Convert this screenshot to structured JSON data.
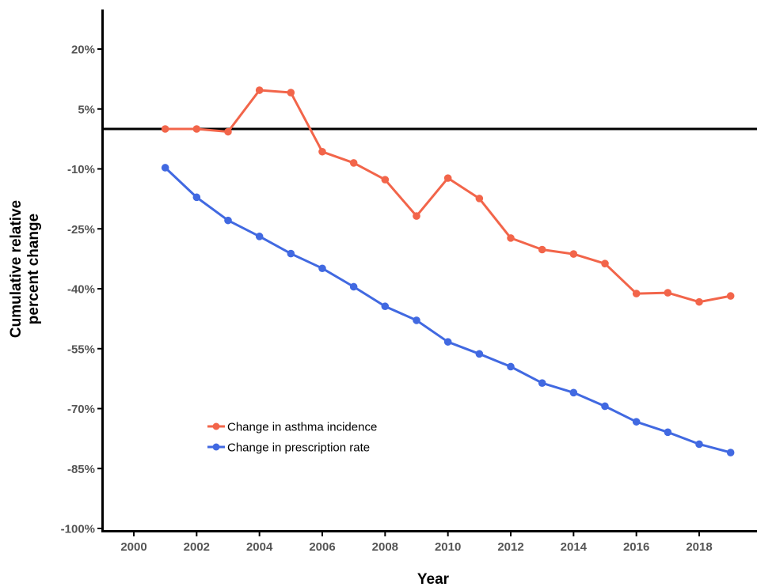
{
  "chart_data": {
    "type": "line",
    "title": "",
    "xlabel": "Year",
    "ylabel_lines": [
      "Cumulative relative",
      "percent change"
    ],
    "xlim": [
      1999.3,
      2020.8
    ],
    "ylim": [
      -100,
      30
    ],
    "x_ticks": [
      2000,
      2002,
      2004,
      2006,
      2008,
      2010,
      2012,
      2014,
      2016,
      2018
    ],
    "x_tick_labels": [
      "2000",
      "2002",
      "2004",
      "2006",
      "2008",
      "2010",
      "2012",
      "2014",
      "2016",
      "2018"
    ],
    "y_ticks": [
      20,
      5,
      -10,
      -25,
      -40,
      -55,
      -70,
      -85,
      -100
    ],
    "y_tick_labels": [
      "20%",
      "5%",
      "-10%",
      "-25%",
      "-40%",
      "-55%",
      "-70%",
      "-85%",
      "-100%"
    ],
    "reference_line_y": 0,
    "grid": false,
    "legend_position": "bottom-left",
    "x": [
      2001,
      2002,
      2003,
      2004,
      2005,
      2006,
      2007,
      2008,
      2009,
      2010,
      2011,
      2012,
      2013,
      2014,
      2015,
      2016,
      2017,
      2018,
      2019
    ],
    "series": [
      {
        "name": "Change in asthma incidence",
        "color": "#f2654a",
        "values": [
          0,
          0,
          -0.7,
          9.7,
          9.1,
          -5.7,
          -8.5,
          -12.7,
          -21.8,
          -12.3,
          -17.4,
          -27.3,
          -30.2,
          -31.3,
          -33.7,
          -41.2,
          -41.0,
          -43.3,
          -41.8
        ]
      },
      {
        "name": "Change in prescription rate",
        "color": "#4169e1",
        "values": [
          -9.7,
          -17.1,
          -22.9,
          -26.9,
          -31.2,
          -34.9,
          -39.5,
          -44.4,
          -47.9,
          -53.3,
          -56.3,
          -59.5,
          -63.6,
          -66.0,
          -69.4,
          -73.3,
          -75.9,
          -78.9,
          -81.0
        ]
      }
    ]
  }
}
